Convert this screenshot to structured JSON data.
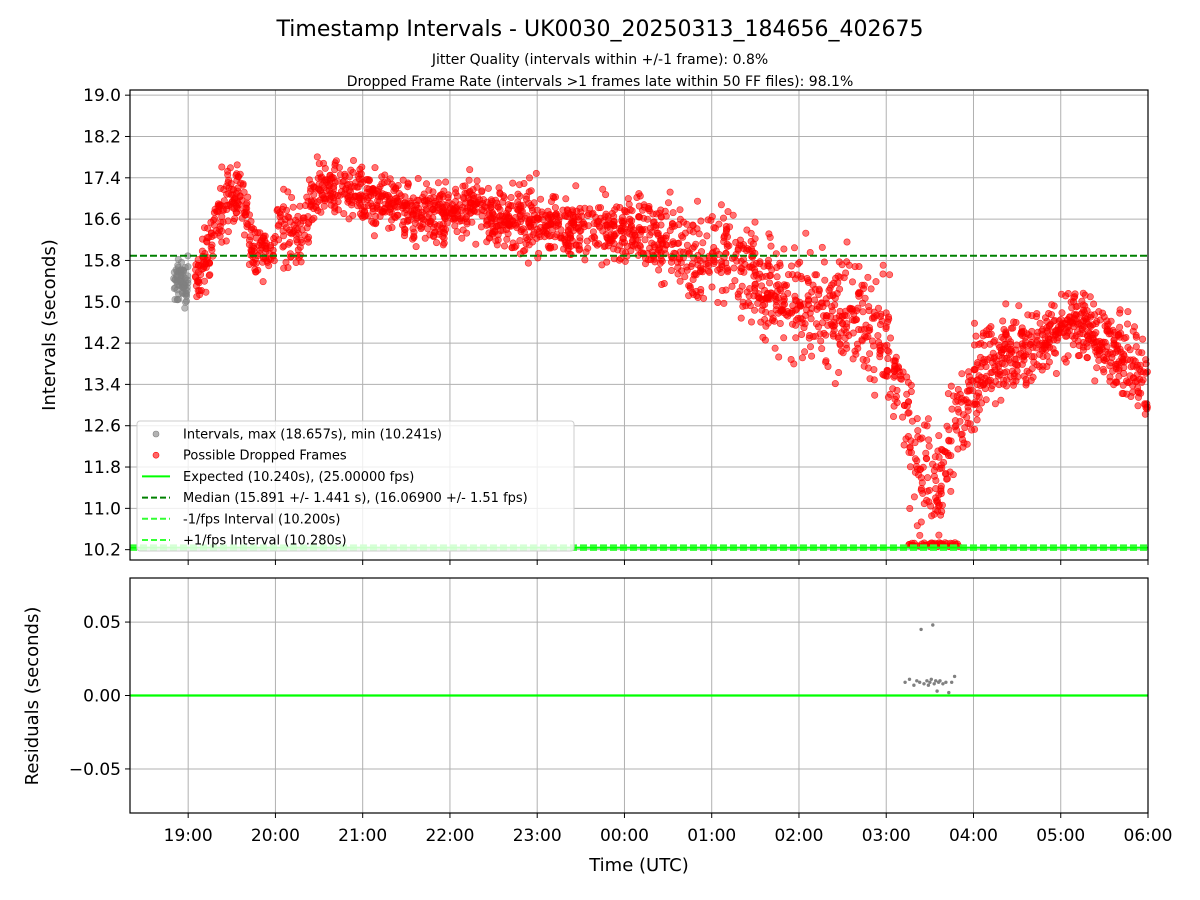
{
  "title": "Timestamp Intervals - UK0030_20250313_184656_402675",
  "subtitle_line1": "Jitter Quality (intervals within +/-1 frame): 0.8%",
  "subtitle_line2": "Dropped Frame Rate (intervals >1 frames late within 50 FF files): 98.1%",
  "colors": {
    "good_points": "#808080",
    "dropped_points": "#ff0000",
    "expected_line": "#00ff00",
    "median_line": "#008000",
    "fps_band_line": "#33ff33",
    "residual_points": "#808080",
    "grid": "#b0b0b0"
  },
  "chart_data": [
    {
      "type": "scatter",
      "name": "intervals-panel",
      "xlabel": "",
      "ylabel": "Intervals (seconds)",
      "x_axis": "time",
      "x_range": [
        "18:20",
        "06:00"
      ],
      "y_range": [
        10.0,
        19.1
      ],
      "y_ticks": [
        10.2,
        11.0,
        11.8,
        12.6,
        13.4,
        14.2,
        15.0,
        15.8,
        16.6,
        17.4,
        18.2,
        19.0
      ],
      "y_tick_labels": [
        "10.2",
        "11.0",
        "11.8",
        "12.6",
        "13.4",
        "14.2",
        "15.0",
        "15.8",
        "16.6",
        "17.4",
        "18.2",
        "19.0"
      ],
      "grid": true,
      "legend_position": "lower-left",
      "series_note": "Dense scatter; values summarised as hourly envelope (time, center, spread) in data units",
      "series": [
        {
          "name": "Intervals, max (18.657s), min (10.241s)",
          "style": "scatter",
          "envelope": [
            [
              "18:50",
              15.3,
              0.35
            ],
            [
              "18:55",
              15.4,
              0.4
            ],
            [
              "19:00",
              15.35,
              0.45
            ]
          ]
        },
        {
          "name": "Possible Dropped Frames",
          "style": "scatter",
          "envelope": [
            [
              "19:05",
              15.5,
              0.4
            ],
            [
              "19:15",
              16.0,
              0.6
            ],
            [
              "19:25",
              16.9,
              0.7
            ],
            [
              "19:35",
              17.2,
              0.6
            ],
            [
              "19:45",
              16.0,
              0.5
            ],
            [
              "19:55",
              15.9,
              0.5
            ],
            [
              "20:05",
              16.5,
              0.7
            ],
            [
              "20:15",
              16.2,
              0.6
            ],
            [
              "20:30",
              17.2,
              0.6
            ],
            [
              "20:50",
              17.1,
              0.5
            ],
            [
              "21:15",
              16.9,
              0.5
            ],
            [
              "21:45",
              16.7,
              0.5
            ],
            [
              "22:15",
              16.8,
              0.5
            ],
            [
              "22:45",
              16.6,
              0.6
            ],
            [
              "23:15",
              16.5,
              0.6
            ],
            [
              "23:45",
              16.4,
              0.6
            ],
            [
              "00:15",
              16.3,
              0.6
            ],
            [
              "00:45",
              15.9,
              0.8
            ],
            [
              "01:15",
              15.9,
              0.9
            ],
            [
              "01:45",
              15.1,
              1.0
            ],
            [
              "02:15",
              14.8,
              1.0
            ],
            [
              "02:45",
              14.6,
              1.0
            ],
            [
              "03:05",
              14.0,
              1.0
            ],
            [
              "03:20",
              12.0,
              1.2
            ],
            [
              "03:35",
              11.4,
              0.9
            ],
            [
              "03:50",
              12.8,
              0.9
            ],
            [
              "04:10",
              13.9,
              0.8
            ],
            [
              "04:40",
              14.1,
              0.7
            ],
            [
              "05:10",
              14.7,
              0.6
            ],
            [
              "05:40",
              14.0,
              0.8
            ],
            [
              "06:00",
              13.4,
              0.9
            ]
          ]
        },
        {
          "name": "Expected (10.240s), (25.00000 fps)",
          "style": "line",
          "y": 10.24
        },
        {
          "name": "Median (15.891 +/- 1.441 s), (16.06900 +/- 1.51 fps)",
          "style": "dashed-line",
          "y": 15.891
        },
        {
          "name": "-1/fps Interval (10.200s)",
          "style": "dashed-line",
          "y": 10.2
        },
        {
          "name": "+1/fps Interval (10.280s)",
          "style": "dashed-line",
          "y": 10.28
        }
      ],
      "legend": [
        "Intervals, max (18.657s), min (10.241s)",
        "Possible Dropped Frames",
        "Expected (10.240s), (25.00000 fps)",
        "Median (15.891 +/- 1.441 s), (16.06900 +/- 1.51 fps)",
        "-1/fps Interval (10.200s)",
        "+1/fps Interval (10.280s)"
      ]
    },
    {
      "type": "scatter",
      "name": "residuals-panel",
      "xlabel": "Time (UTC)",
      "ylabel": "Residuals (seconds)",
      "x_range": [
        "18:20",
        "06:00"
      ],
      "x_ticks": [
        "19:00",
        "20:00",
        "21:00",
        "22:00",
        "23:00",
        "00:00",
        "01:00",
        "02:00",
        "03:00",
        "04:00",
        "05:00",
        "06:00"
      ],
      "y_range": [
        -0.08,
        0.08
      ],
      "y_ticks": [
        0.05,
        0.0,
        -0.05
      ],
      "y_tick_labels": [
        "0.05",
        "0.00",
        "−0.05"
      ],
      "grid": true,
      "zero_line": 0.0,
      "points": [
        [
          "03:13",
          0.009
        ],
        [
          "03:16",
          0.011
        ],
        [
          "03:19",
          0.007
        ],
        [
          "03:21",
          0.01
        ],
        [
          "03:23",
          0.009
        ],
        [
          "03:24",
          0.045
        ],
        [
          "03:26",
          0.008
        ],
        [
          "03:28",
          0.01
        ],
        [
          "03:29",
          0.007
        ],
        [
          "03:30",
          0.009
        ],
        [
          "03:31",
          0.011
        ],
        [
          "03:32",
          0.048
        ],
        [
          "03:33",
          0.008
        ],
        [
          "03:34",
          0.01
        ],
        [
          "03:35",
          0.003
        ],
        [
          "03:36",
          0.009
        ],
        [
          "03:37",
          0.01
        ],
        [
          "03:39",
          0.008
        ],
        [
          "03:41",
          0.009
        ],
        [
          "03:43",
          0.002
        ],
        [
          "03:45",
          0.009
        ],
        [
          "03:47",
          0.013
        ]
      ]
    }
  ]
}
